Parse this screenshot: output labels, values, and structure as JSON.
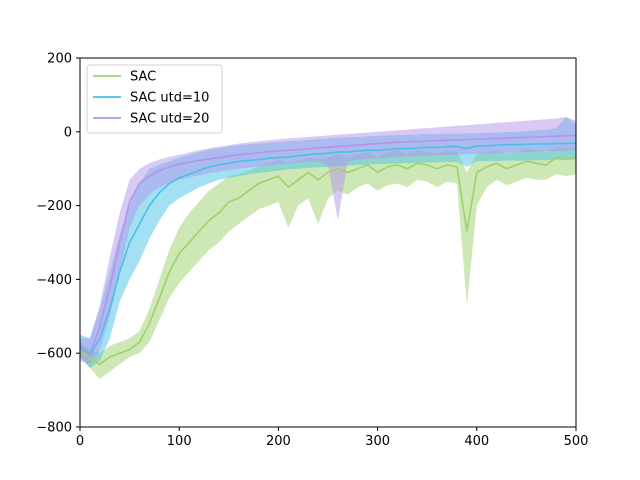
{
  "chart_data": {
    "type": "line",
    "title": "",
    "xlabel": "",
    "ylabel": "",
    "xlim": [
      0,
      500
    ],
    "ylim": [
      -800,
      200
    ],
    "xticks": [
      0,
      100,
      200,
      300,
      400,
      500
    ],
    "yticks": [
      -800,
      -600,
      -400,
      -200,
      0,
      200
    ],
    "xtick_labels": [
      "0",
      "100",
      "200",
      "300",
      "400",
      "500"
    ],
    "ytick_labels": [
      "−800",
      "−600",
      "−400",
      "−200",
      "0",
      "200"
    ],
    "grid": false,
    "legend_position": "top-left",
    "x": [
      0,
      10,
      20,
      30,
      40,
      50,
      60,
      70,
      80,
      90,
      100,
      110,
      120,
      130,
      140,
      150,
      160,
      170,
      180,
      190,
      200,
      210,
      220,
      230,
      240,
      250,
      260,
      270,
      280,
      290,
      300,
      310,
      320,
      330,
      340,
      350,
      360,
      370,
      380,
      390,
      400,
      410,
      420,
      430,
      440,
      450,
      460,
      470,
      480,
      490,
      500
    ],
    "series": [
      {
        "name": "SAC",
        "color": "#9dd16b",
        "mean": [
          -590,
          -615,
          -630,
          -610,
          -600,
          -590,
          -570,
          -520,
          -450,
          -380,
          -330,
          -300,
          -270,
          -240,
          -220,
          -190,
          -180,
          -160,
          -140,
          -130,
          -120,
          -150,
          -130,
          -110,
          -130,
          -110,
          -100,
          -110,
          -100,
          -90,
          -110,
          -95,
          -90,
          -100,
          -85,
          -90,
          -100,
          -90,
          -95,
          -270,
          -110,
          -95,
          -85,
          -100,
          -90,
          -80,
          -85,
          -90,
          -70,
          -75,
          -70
        ],
        "lower": [
          -610,
          -640,
          -670,
          -650,
          -630,
          -610,
          -600,
          -570,
          -510,
          -450,
          -410,
          -380,
          -350,
          -320,
          -300,
          -270,
          -250,
          -230,
          -210,
          -200,
          -190,
          -260,
          -200,
          -180,
          -250,
          -180,
          -160,
          -170,
          -150,
          -140,
          -160,
          -145,
          -140,
          -150,
          -130,
          -135,
          -150,
          -135,
          -140,
          -470,
          -200,
          -150,
          -130,
          -145,
          -135,
          -125,
          -130,
          -130,
          -115,
          -120,
          -115
        ],
        "upper": [
          -570,
          -590,
          -600,
          -580,
          -570,
          -560,
          -540,
          -480,
          -400,
          -320,
          -260,
          -220,
          -190,
          -160,
          -140,
          -120,
          -115,
          -105,
          -95,
          -85,
          -75,
          -85,
          -80,
          -70,
          -75,
          -70,
          -60,
          -70,
          -60,
          -55,
          -70,
          -55,
          -50,
          -60,
          -50,
          -55,
          -60,
          -50,
          -55,
          -110,
          -60,
          -55,
          -50,
          -60,
          -55,
          -45,
          -50,
          -55,
          -40,
          -45,
          -40
        ]
      },
      {
        "name": "SAC utd=10",
        "color": "#48c1e5",
        "mean": [
          -580,
          -605,
          -560,
          -480,
          -380,
          -300,
          -250,
          -200,
          -165,
          -140,
          -125,
          -115,
          -105,
          -95,
          -90,
          -85,
          -80,
          -78,
          -75,
          -72,
          -70,
          -68,
          -65,
          -62,
          -60,
          -58,
          -55,
          -55,
          -52,
          -50,
          -50,
          -48,
          -46,
          -45,
          -44,
          -42,
          -42,
          -40,
          -40,
          -45,
          -38,
          -38,
          -36,
          -35,
          -35,
          -34,
          -33,
          -33,
          -32,
          -32,
          -30
        ],
        "lower": [
          -610,
          -640,
          -620,
          -560,
          -460,
          -400,
          -350,
          -290,
          -240,
          -200,
          -180,
          -165,
          -150,
          -140,
          -130,
          -125,
          -120,
          -115,
          -112,
          -108,
          -105,
          -102,
          -100,
          -98,
          -96,
          -95,
          -93,
          -92,
          -90,
          -89,
          -88,
          -87,
          -86,
          -85,
          -84,
          -83,
          -83,
          -82,
          -82,
          -95,
          -80,
          -80,
          -79,
          -78,
          -78,
          -78,
          -77,
          -77,
          -76,
          -76,
          -75
        ],
        "upper": [
          -550,
          -560,
          -480,
          -380,
          -280,
          -200,
          -140,
          -100,
          -90,
          -80,
          -70,
          -62,
          -55,
          -48,
          -45,
          -40,
          -36,
          -34,
          -32,
          -30,
          -28,
          -26,
          -24,
          -22,
          -20,
          -18,
          -16,
          -15,
          -14,
          -12,
          -11,
          -10,
          -9,
          -8,
          -7,
          -6,
          -6,
          -5,
          -5,
          -5,
          -4,
          -3,
          -2,
          -1,
          0,
          2,
          4,
          6,
          10,
          40,
          20
        ]
      },
      {
        "name": "SAC utd=20",
        "color": "#b394ec",
        "mean": [
          -590,
          -600,
          -530,
          -420,
          -300,
          -190,
          -140,
          -120,
          -105,
          -95,
          -88,
          -82,
          -78,
          -74,
          -70,
          -66,
          -62,
          -60,
          -57,
          -54,
          -52,
          -50,
          -48,
          -46,
          -44,
          -42,
          -40,
          -38,
          -36,
          -34,
          -32,
          -30,
          -28,
          -27,
          -26,
          -25,
          -24,
          -23,
          -22,
          -21,
          -20,
          -19,
          -18,
          -17,
          -16,
          -15,
          -14,
          -13,
          -12,
          -11,
          -10
        ],
        "lower": [
          -620,
          -630,
          -590,
          -500,
          -380,
          -260,
          -200,
          -170,
          -150,
          -138,
          -130,
          -124,
          -118,
          -112,
          -108,
          -104,
          -100,
          -97,
          -94,
          -91,
          -88,
          -86,
          -84,
          -82,
          -80,
          -90,
          -240,
          -80,
          -76,
          -74,
          -72,
          -70,
          -68,
          -67,
          -66,
          -65,
          -64,
          -63,
          -62,
          -61,
          -60,
          -59,
          -58,
          -57,
          -56,
          -55,
          -54,
          -53,
          -52,
          -51,
          -50
        ],
        "upper": [
          -560,
          -560,
          -470,
          -340,
          -220,
          -130,
          -100,
          -85,
          -75,
          -68,
          -62,
          -56,
          -50,
          -45,
          -40,
          -36,
          -32,
          -29,
          -26,
          -23,
          -20,
          -18,
          -16,
          -14,
          -12,
          -10,
          -8,
          -6,
          -4,
          -2,
          0,
          2,
          4,
          6,
          8,
          10,
          12,
          14,
          16,
          18,
          20,
          22,
          24,
          26,
          28,
          30,
          32,
          34,
          36,
          40,
          30
        ]
      }
    ]
  }
}
